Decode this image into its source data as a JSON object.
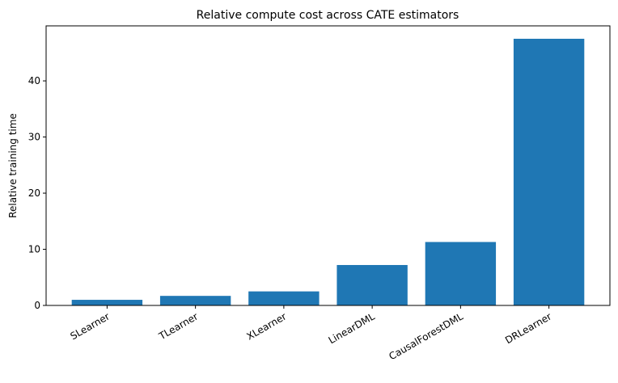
{
  "chart_data": {
    "type": "bar",
    "title": "Relative compute cost across CATE estimators",
    "xlabel": "",
    "ylabel": "Relative training time",
    "categories": [
      "SLearner",
      "TLearner",
      "XLearner",
      "LinearDML",
      "CausalForestDML",
      "DRLearner"
    ],
    "values": [
      1.0,
      1.7,
      2.5,
      7.2,
      11.3,
      47.5
    ],
    "ylim": [
      0,
      49.8
    ],
    "yticks": [
      0,
      10,
      20,
      30,
      40
    ],
    "grid": false,
    "bar_color": "#1f77b4"
  }
}
